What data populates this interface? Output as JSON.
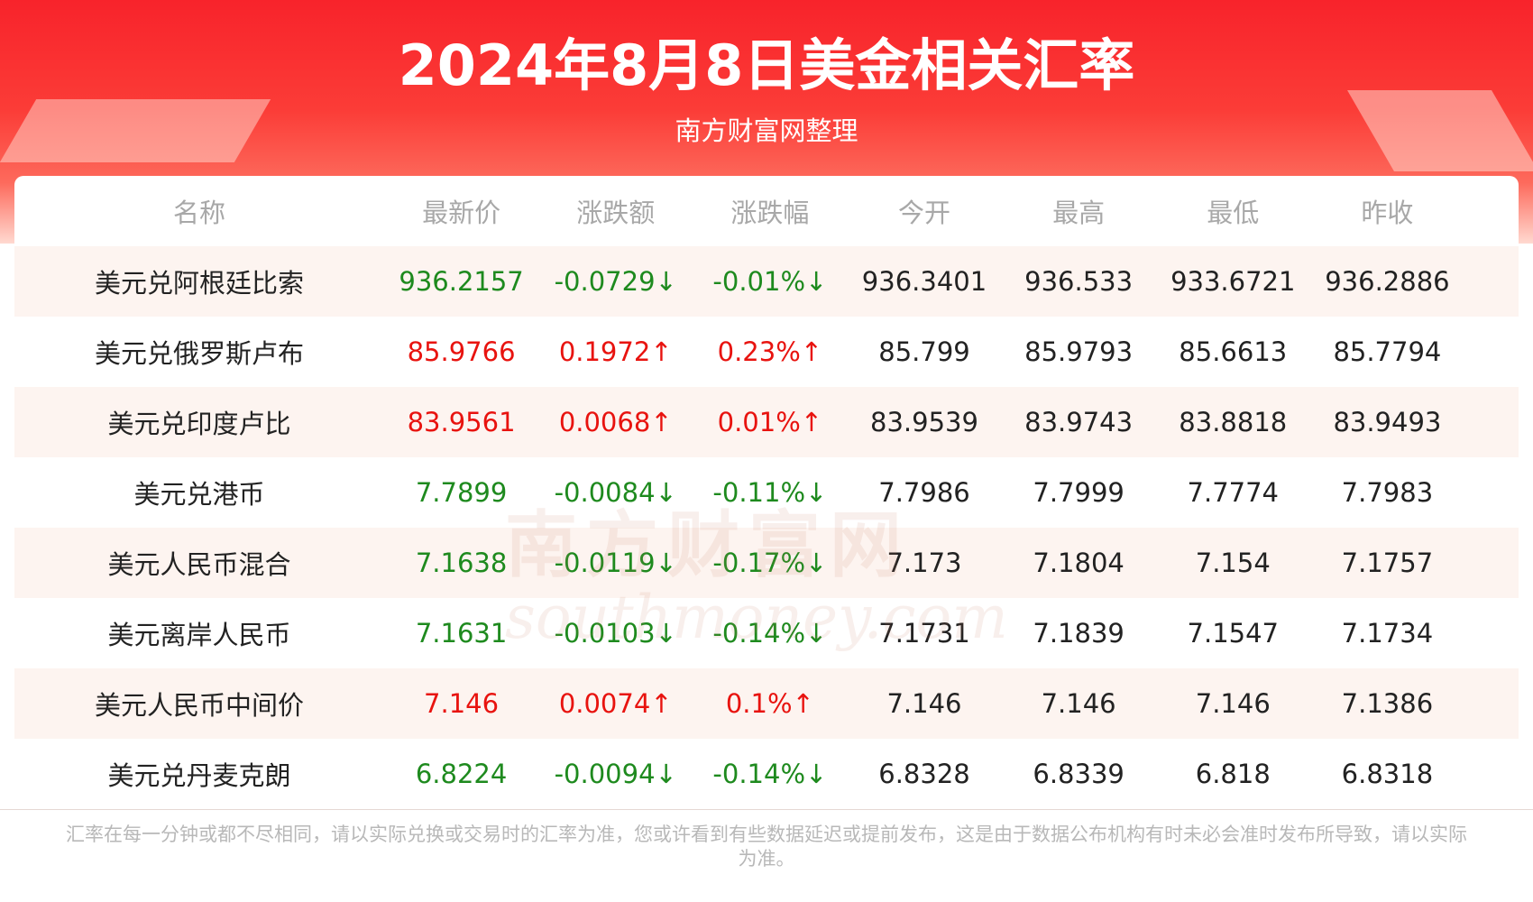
{
  "header": {
    "title": "2024年8月8日美金相关汇率",
    "subtitle": "南方财富网整理"
  },
  "table": {
    "columns": [
      "名称",
      "最新价",
      "涨跌额",
      "涨跌幅",
      "今开",
      "最高",
      "最低",
      "昨收"
    ],
    "rows": [
      {
        "color": "#1e8a1e",
        "cells": [
          "美元兑阿根廷比索",
          "936.2157",
          "-0.0729↓",
          "-0.01%↓",
          "936.3401",
          "936.533",
          "933.6721",
          "936.2886"
        ]
      },
      {
        "color": "#e8130f",
        "cells": [
          "美元兑俄罗斯卢布",
          "85.9766",
          "0.1972↑",
          "0.23%↑",
          "85.799",
          "85.9793",
          "85.6613",
          "85.7794"
        ]
      },
      {
        "color": "#e8130f",
        "cells": [
          "美元兑印度卢比",
          "83.9561",
          "0.0068↑",
          "0.01%↑",
          "83.9539",
          "83.9743",
          "83.8818",
          "83.9493"
        ]
      },
      {
        "color": "#1e8a1e",
        "cells": [
          "美元兑港币",
          "7.7899",
          "-0.0084↓",
          "-0.11%↓",
          "7.7986",
          "7.7999",
          "7.7774",
          "7.7983"
        ]
      },
      {
        "color": "#1e8a1e",
        "cells": [
          "美元人民币混合",
          "7.1638",
          "-0.0119↓",
          "-0.17%↓",
          "7.173",
          "7.1804",
          "7.154",
          "7.1757"
        ]
      },
      {
        "color": "#1e8a1e",
        "cells": [
          "美元离岸人民币",
          "7.1631",
          "-0.0103↓",
          "-0.14%↓",
          "7.1731",
          "7.1839",
          "7.1547",
          "7.1734"
        ]
      },
      {
        "color": "#e8130f",
        "cells": [
          "美元人民币中间价",
          "7.146",
          "0.0074↑",
          "0.1%↑",
          "7.146",
          "7.146",
          "7.146",
          "7.1386"
        ]
      },
      {
        "color": "#1e8a1e",
        "cells": [
          "美元兑丹麦克朗",
          "6.8224",
          "-0.0094↓",
          "-0.14%↓",
          "6.8328",
          "6.8339",
          "6.818",
          "6.8318"
        ]
      }
    ]
  },
  "watermark": {
    "brand": "南方财富网",
    "site": "southmoney.com"
  },
  "footer": {
    "note": "汇率在每一分钟或都不尽相同，请以实际兑换或交易时的汇率为准，您或许看到有些数据延迟或提前发布，这是由于数据公布机构有时未必会准时发布所导致，请以实际为准。"
  }
}
